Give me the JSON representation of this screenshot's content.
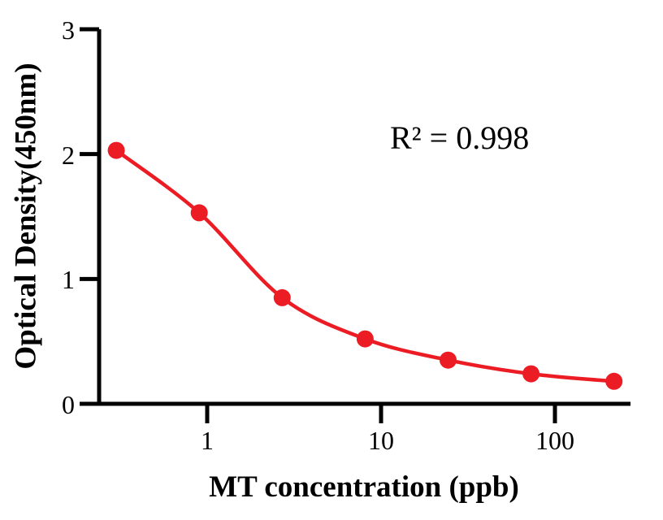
{
  "chart_data": {
    "type": "line",
    "title": "",
    "xlabel": "MT concentration (ppb)",
    "ylabel": "Optical Density(450nm)",
    "annotation": "R² = 0.998",
    "x_scale": "log",
    "x": [
      0.3,
      0.9,
      2.7,
      8.1,
      24.3,
      72.9,
      218.7
    ],
    "y": [
      2.03,
      1.53,
      0.85,
      0.52,
      0.35,
      0.24,
      0.18
    ],
    "x_ticks": [
      "1",
      "10",
      "100"
    ],
    "x_tick_values": [
      1,
      10,
      100
    ],
    "y_ticks": [
      "0",
      "1",
      "2",
      "3"
    ],
    "y_tick_values": [
      0,
      1,
      2,
      3
    ],
    "xlim": [
      0.23,
      270
    ],
    "ylim": [
      0,
      3
    ],
    "grid": false,
    "legend": "none",
    "series_color": "#EC1C24",
    "axis_color": "#000000"
  }
}
